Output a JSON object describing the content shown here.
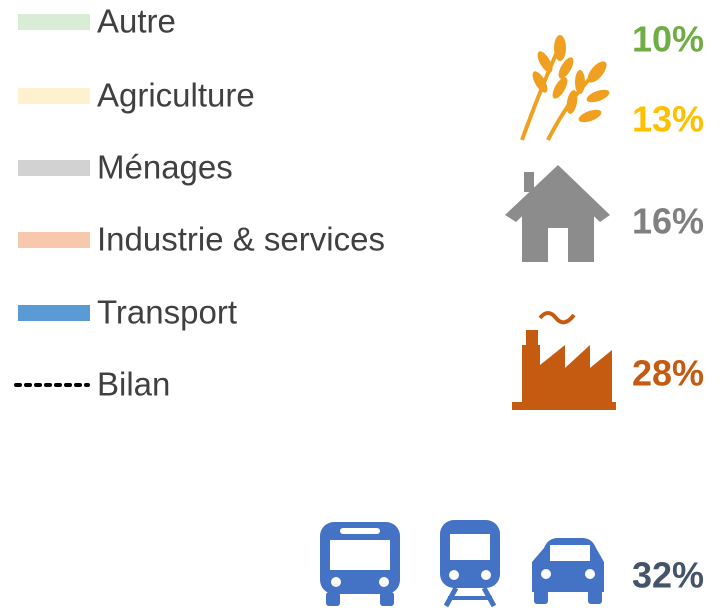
{
  "legend": [
    {
      "label": "Autre",
      "color": "#d9ecd5"
    },
    {
      "label": "Agriculture",
      "color": "#fdf1cf"
    },
    {
      "label": "Ménages",
      "color": "#d2d2d2"
    },
    {
      "label": "Industrie & services",
      "color": "#f7c8ad"
    },
    {
      "label": "Transport",
      "color": "#5b9bd5"
    },
    {
      "label": "Bilan",
      "color": "#000000",
      "line": "dotted"
    }
  ],
  "shares": [
    {
      "label": "10%",
      "color": "#70ad47"
    },
    {
      "label": "13%",
      "color": "#ffc000"
    },
    {
      "label": "16%",
      "color": "#808080"
    },
    {
      "label": "28%",
      "color": "#c55a11"
    },
    {
      "label": "32%",
      "color": "#44546a"
    }
  ]
}
